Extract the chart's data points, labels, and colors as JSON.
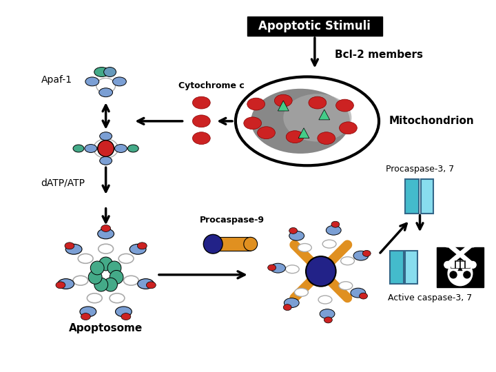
{
  "title": "Apoptotic Stimuli",
  "labels": {
    "apaf1": "Apaf-1",
    "cytochrome": "Cytochrome c",
    "bcl2": "Bcl-2 members",
    "mito": "Mitochondrion",
    "datp": "dATP/ATP",
    "procasp9": "Procaspase-9",
    "procasp37": "Procaspase-3, 7",
    "apoptosome": "Apoptosome",
    "active": "Active caspase-3, 7"
  },
  "colors": {
    "blue_oval": "#7b9fd4",
    "red_oval": "#cc2222",
    "green_oval": "#44aa88",
    "teal_center": "#44aa88",
    "dark_navy": "#222288",
    "orange_bar": "#e09020",
    "cyan_rect": "#44bbcc",
    "mito_gray": "#888888",
    "mito_light": "#aaaaaa",
    "spoke_gray": "#bbbbbb",
    "white": "#ffffff",
    "black": "#000000"
  },
  "layout": {
    "fig_w": 7.2,
    "fig_h": 5.4,
    "dpi": 100
  }
}
